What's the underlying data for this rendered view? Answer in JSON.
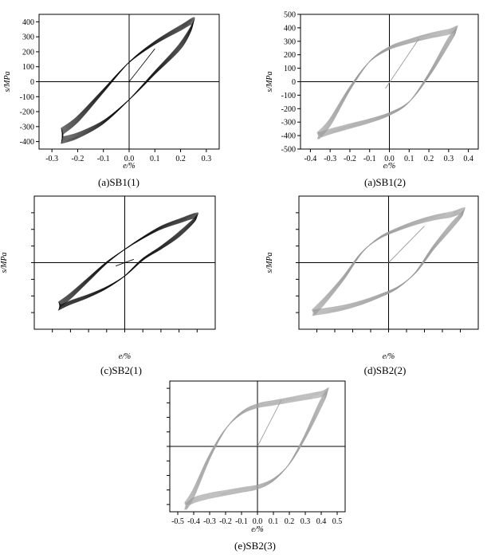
{
  "chart_data": [
    {
      "type": "line",
      "caption": "(a)SB1(1)",
      "xlabel": "e/%",
      "ylabel": "s/MPa",
      "xlim": [
        -0.35,
        0.35
      ],
      "ylim": [
        -450,
        450
      ],
      "xticks": [
        -0.3,
        -0.2,
        -0.1,
        0.0,
        0.1,
        0.2,
        0.3
      ],
      "yticks": [
        -400,
        -300,
        -200,
        -100,
        0,
        100,
        200,
        300,
        400
      ],
      "xtick_labels": [
        "-0.3",
        "-0.2",
        "-0.1",
        "0.0",
        "0.1",
        "0.2",
        "0.3"
      ],
      "ytick_labels": [
        "-400",
        "-300",
        "-200",
        "-100",
        "0",
        "100",
        "200",
        "300",
        "400"
      ],
      "show_tick_labels": true,
      "color": "#111111",
      "loop": {
        "upper": {
          "x": [
            -0.26,
            -0.2,
            -0.1,
            0.0,
            0.1,
            0.2,
            0.25
          ],
          "y": [
            -330,
            -250,
            -60,
            130,
            260,
            360,
            400
          ]
        },
        "lower": {
          "x": [
            0.25,
            0.2,
            0.1,
            0.0,
            -0.1,
            -0.2,
            -0.26
          ],
          "y": [
            330,
            240,
            60,
            -120,
            -270,
            -360,
            -390
          ]
        },
        "initial": {
          "x": [
            0.0,
            0.1
          ],
          "y": [
            0,
            220
          ]
        }
      }
    },
    {
      "type": "line",
      "caption": "(a)SB1(2)",
      "xlabel": "e/%",
      "ylabel": "s/MPa",
      "xlim": [
        -0.45,
        0.45
      ],
      "ylim": [
        -500,
        500
      ],
      "xticks": [
        -0.4,
        -0.3,
        -0.2,
        -0.1,
        0.0,
        0.1,
        0.2,
        0.3,
        0.4
      ],
      "yticks": [
        -500,
        -400,
        -300,
        -200,
        -100,
        0,
        100,
        200,
        300,
        400,
        500
      ],
      "xtick_labels": [
        "-0.4",
        "-0.3",
        "-0.2",
        "-0.1",
        "0.0",
        "0.1",
        "0.2",
        "0.3",
        "0.4"
      ],
      "ytick_labels": [
        "-500",
        "-400",
        "-300",
        "-200",
        "-100",
        "0",
        "100",
        "200",
        "300",
        "400",
        "500"
      ],
      "show_tick_labels": true,
      "color": "#9a9a9a",
      "loop": {
        "upper": {
          "x": [
            -0.36,
            -0.3,
            -0.2,
            -0.1,
            0.0,
            0.1,
            0.2,
            0.3,
            0.34
          ],
          "y": [
            -400,
            -300,
            -50,
            150,
            250,
            300,
            340,
            370,
            390
          ]
        },
        "lower": {
          "x": [
            0.34,
            0.3,
            0.2,
            0.1,
            0.0,
            -0.1,
            -0.2,
            -0.3,
            -0.36
          ],
          "y": [
            390,
            300,
            50,
            -150,
            -240,
            -290,
            -330,
            -370,
            -400
          ]
        },
        "initial": {
          "x": [
            -0.02,
            0.15
          ],
          "y": [
            -50,
            320
          ]
        }
      }
    },
    {
      "type": "line",
      "caption": "(c)SB2(1)",
      "xlabel": "e/%",
      "ylabel": "s/MPa",
      "xlim": [
        -0.5,
        0.5
      ],
      "ylim": [
        -400,
        400
      ],
      "xticks": [
        -0.4,
        -0.3,
        -0.2,
        -0.1,
        0.0,
        0.1,
        0.2,
        0.3,
        0.4
      ],
      "yticks": [
        -300,
        -200,
        -100,
        0,
        100,
        200,
        300
      ],
      "xtick_labels": [],
      "ytick_labels": [],
      "show_tick_labels": false,
      "color": "#111111",
      "loop": {
        "upper": {
          "x": [
            -0.36,
            -0.3,
            -0.2,
            -0.1,
            0.0,
            0.1,
            0.2,
            0.3,
            0.4
          ],
          "y": [
            -250,
            -200,
            -100,
            0,
            80,
            150,
            210,
            250,
            280
          ]
        },
        "lower": {
          "x": [
            0.4,
            0.3,
            0.2,
            0.1,
            0.0,
            -0.1,
            -0.2,
            -0.3,
            -0.36
          ],
          "y": [
            250,
            170,
            90,
            20,
            -80,
            -150,
            -200,
            -240,
            -270
          ]
        },
        "initial": {
          "x": [
            -0.05,
            0.05
          ],
          "y": [
            -20,
            20
          ]
        }
      }
    },
    {
      "type": "line",
      "caption": "(d)SB2(2)",
      "xlabel": "e/%",
      "ylabel": "s/MPa",
      "xlim": [
        -0.5,
        0.5
      ],
      "ylim": [
        -400,
        400
      ],
      "xticks": [
        -0.4,
        -0.3,
        -0.2,
        -0.1,
        0.0,
        0.1,
        0.2,
        0.3,
        0.4
      ],
      "yticks": [
        -300,
        -200,
        -100,
        0,
        100,
        200,
        300
      ],
      "xtick_labels": [],
      "ytick_labels": [],
      "show_tick_labels": false,
      "color": "#9a9a9a",
      "loop": {
        "upper": {
          "x": [
            -0.42,
            -0.35,
            -0.25,
            -0.15,
            -0.05,
            0.05,
            0.15,
            0.25,
            0.35,
            0.42
          ],
          "y": [
            -300,
            -220,
            -90,
            60,
            150,
            200,
            240,
            270,
            290,
            310
          ]
        },
        "lower": {
          "x": [
            0.42,
            0.35,
            0.25,
            0.15,
            0.05,
            -0.05,
            -0.15,
            -0.25,
            -0.35,
            -0.42
          ],
          "y": [
            310,
            220,
            90,
            -60,
            -150,
            -200,
            -240,
            -270,
            -290,
            -300
          ]
        },
        "initial": {
          "x": [
            0.0,
            0.2
          ],
          "y": [
            0,
            220
          ]
        }
      }
    },
    {
      "type": "line",
      "caption": "(e)SB2(3)",
      "xlabel": "e/%",
      "ylabel": "",
      "xlim": [
        -0.55,
        0.55
      ],
      "ylim": [
        -450,
        450
      ],
      "xticks": [
        -0.5,
        -0.4,
        -0.3,
        -0.2,
        -0.1,
        0.0,
        0.1,
        0.2,
        0.3,
        0.4,
        0.5
      ],
      "yticks": [
        -400,
        -300,
        -200,
        -100,
        0,
        100,
        200,
        300,
        400
      ],
      "xtick_labels": [
        "-0.5",
        "-0.4",
        "-0.3",
        "-0.2",
        "-0.1",
        "0.0",
        "0.1",
        "0.2",
        "0.3",
        "0.4",
        "0.5"
      ],
      "ytick_labels": [],
      "show_tick_labels": true,
      "color": "#a0a0a0",
      "loop": {
        "upper": {
          "x": [
            -0.45,
            -0.4,
            -0.3,
            -0.2,
            -0.1,
            0.0,
            0.1,
            0.2,
            0.3,
            0.4,
            0.44
          ],
          "y": [
            -410,
            -320,
            -70,
            120,
            230,
            280,
            300,
            320,
            340,
            360,
            380
          ]
        },
        "lower": {
          "x": [
            0.44,
            0.4,
            0.3,
            0.2,
            0.1,
            0.0,
            -0.1,
            -0.2,
            -0.3,
            -0.4,
            -0.45
          ],
          "y": [
            380,
            300,
            70,
            -120,
            -230,
            -280,
            -300,
            -320,
            -340,
            -370,
            -410
          ]
        },
        "initial": {
          "x": [
            0.0,
            0.15
          ],
          "y": [
            0,
            320
          ]
        }
      }
    }
  ]
}
